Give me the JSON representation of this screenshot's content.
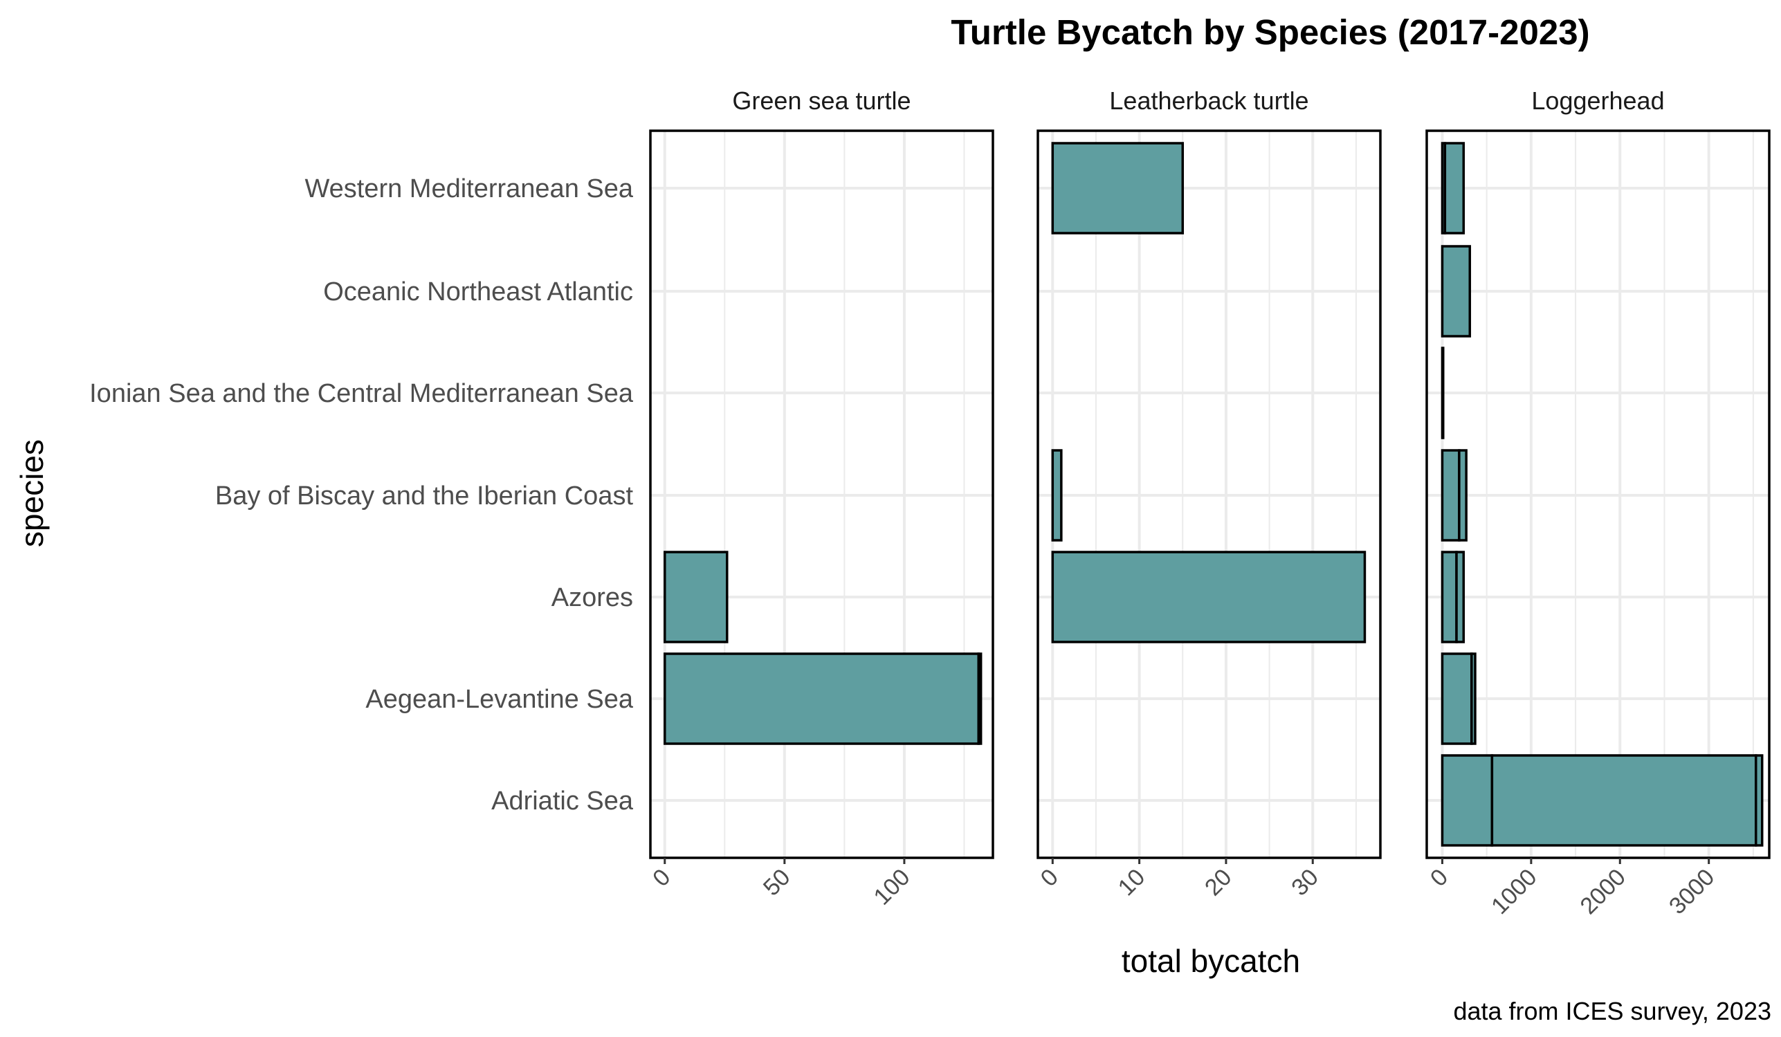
{
  "chart_data": {
    "type": "bar",
    "orientation": "horizontal",
    "facet": "stacked",
    "title": "Turtle Bycatch by Species (2017-2023)",
    "xlabel": "total bycatch",
    "ylabel": "species",
    "caption": "data from ICES survey, 2023",
    "categories": [
      "Western Mediterranean Sea",
      "Oceanic Northeast Atlantic",
      "Ionian Sea and the Central Mediterranean Sea",
      "Bay of Biscay and the Iberian Coast",
      "Azores",
      "Aegean-Levantine Sea",
      "Adriatic Sea"
    ],
    "bar_color": "#5f9ea0",
    "grid": true,
    "panels": [
      {
        "name": "Green sea turtle",
        "xlim": [
          -6,
          137
        ],
        "ticks": [
          0,
          50,
          100
        ],
        "tick_labels": [
          "0",
          "50",
          "100"
        ],
        "segments": [
          {
            "category": "Azores",
            "from": 0,
            "to": 26
          },
          {
            "category": "Aegean-Levantine Sea",
            "from": 0,
            "to": 131
          },
          {
            "category": "Aegean-Levantine Sea",
            "from": 131,
            "to": 132
          }
        ]
      },
      {
        "name": "Leatherback turtle",
        "xlim": [
          -1.7,
          37.8
        ],
        "ticks": [
          0,
          10,
          20,
          30
        ],
        "tick_labels": [
          "0",
          "10",
          "20",
          "30"
        ],
        "segments": [
          {
            "category": "Western Mediterranean Sea",
            "from": 0,
            "to": 15
          },
          {
            "category": "Bay of Biscay and the Iberian Coast",
            "from": 0,
            "to": 1
          },
          {
            "category": "Azores",
            "from": 0,
            "to": 36
          }
        ]
      },
      {
        "name": "Loggerhead",
        "xlim": [
          -175,
          3680
        ],
        "ticks": [
          0,
          1000,
          2000,
          3000
        ],
        "tick_labels": [
          "0",
          "1000",
          "2000",
          "3000"
        ],
        "segments": [
          {
            "category": "Western Mediterranean Sea",
            "from": 0,
            "to": 30
          },
          {
            "category": "Western Mediterranean Sea",
            "from": 30,
            "to": 240
          },
          {
            "category": "Oceanic Northeast Atlantic",
            "from": 0,
            "to": 310
          },
          {
            "category": "Ionian Sea and the Central Mediterranean Sea",
            "from": 0,
            "to": 10
          },
          {
            "category": "Bay of Biscay and the Iberian Coast",
            "from": 0,
            "to": 190
          },
          {
            "category": "Bay of Biscay and the Iberian Coast",
            "from": 190,
            "to": 270
          },
          {
            "category": "Azores",
            "from": 0,
            "to": 160
          },
          {
            "category": "Azores",
            "from": 160,
            "to": 240
          },
          {
            "category": "Aegean-Levantine Sea",
            "from": 0,
            "to": 330
          },
          {
            "category": "Aegean-Levantine Sea",
            "from": 330,
            "to": 370
          },
          {
            "category": "Adriatic Sea",
            "from": 0,
            "to": 560
          },
          {
            "category": "Adriatic Sea",
            "from": 560,
            "to": 3530
          },
          {
            "category": "Adriatic Sea",
            "from": 3530,
            "to": 3600
          }
        ]
      }
    ]
  }
}
